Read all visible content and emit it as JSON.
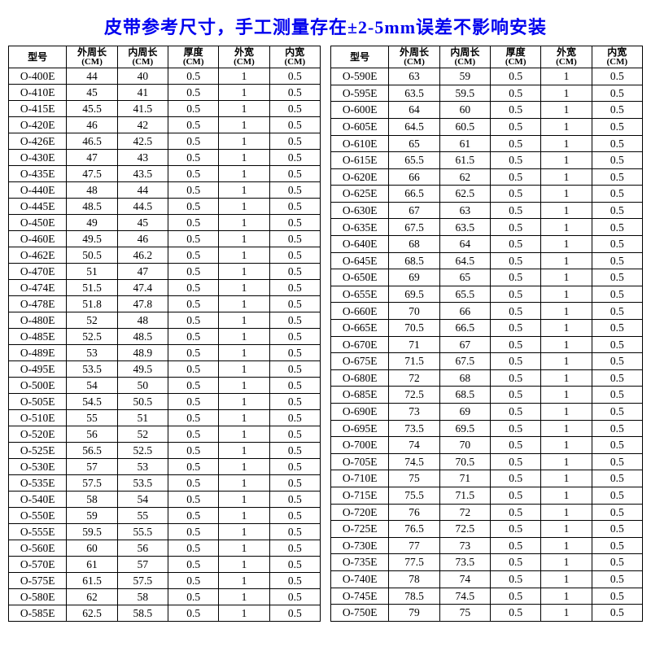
{
  "title": "皮带参考尺寸，手工测量存在±2-5mm误差不影响安装",
  "title_color": "#0000ee",
  "background_color": "#ffffff",
  "border_color": "#000000",
  "headers": [
    {
      "label": "型号",
      "unit": ""
    },
    {
      "label": "外周长",
      "unit": "(CM)"
    },
    {
      "label": "内周长",
      "unit": "(CM)"
    },
    {
      "label": "厚度",
      "unit": "(CM)"
    },
    {
      "label": "外宽",
      "unit": "(CM)"
    },
    {
      "label": "内宽",
      "unit": "(CM)"
    }
  ],
  "left_rows": [
    [
      "O-400E",
      "44",
      "40",
      "0.5",
      "1",
      "0.5"
    ],
    [
      "O-410E",
      "45",
      "41",
      "0.5",
      "1",
      "0.5"
    ],
    [
      "O-415E",
      "45.5",
      "41.5",
      "0.5",
      "1",
      "0.5"
    ],
    [
      "O-420E",
      "46",
      "42",
      "0.5",
      "1",
      "0.5"
    ],
    [
      "O-426E",
      "46.5",
      "42.5",
      "0.5",
      "1",
      "0.5"
    ],
    [
      "O-430E",
      "47",
      "43",
      "0.5",
      "1",
      "0.5"
    ],
    [
      "O-435E",
      "47.5",
      "43.5",
      "0.5",
      "1",
      "0.5"
    ],
    [
      "O-440E",
      "48",
      "44",
      "0.5",
      "1",
      "0.5"
    ],
    [
      "O-445E",
      "48.5",
      "44.5",
      "0.5",
      "1",
      "0.5"
    ],
    [
      "O-450E",
      "49",
      "45",
      "0.5",
      "1",
      "0.5"
    ],
    [
      "O-460E",
      "49.5",
      "46",
      "0.5",
      "1",
      "0.5"
    ],
    [
      "O-462E",
      "50.5",
      "46.2",
      "0.5",
      "1",
      "0.5"
    ],
    [
      "O-470E",
      "51",
      "47",
      "0.5",
      "1",
      "0.5"
    ],
    [
      "O-474E",
      "51.5",
      "47.4",
      "0.5",
      "1",
      "0.5"
    ],
    [
      "O-478E",
      "51.8",
      "47.8",
      "0.5",
      "1",
      "0.5"
    ],
    [
      "O-480E",
      "52",
      "48",
      "0.5",
      "1",
      "0.5"
    ],
    [
      "O-485E",
      "52.5",
      "48.5",
      "0.5",
      "1",
      "0.5"
    ],
    [
      "O-489E",
      "53",
      "48.9",
      "0.5",
      "1",
      "0.5"
    ],
    [
      "O-495E",
      "53.5",
      "49.5",
      "0.5",
      "1",
      "0.5"
    ],
    [
      "O-500E",
      "54",
      "50",
      "0.5",
      "1",
      "0.5"
    ],
    [
      "O-505E",
      "54.5",
      "50.5",
      "0.5",
      "1",
      "0.5"
    ],
    [
      "O-510E",
      "55",
      "51",
      "0.5",
      "1",
      "0.5"
    ],
    [
      "O-520E",
      "56",
      "52",
      "0.5",
      "1",
      "0.5"
    ],
    [
      "O-525E",
      "56.5",
      "52.5",
      "0.5",
      "1",
      "0.5"
    ],
    [
      "O-530E",
      "57",
      "53",
      "0.5",
      "1",
      "0.5"
    ],
    [
      "O-535E",
      "57.5",
      "53.5",
      "0.5",
      "1",
      "0.5"
    ],
    [
      "O-540E",
      "58",
      "54",
      "0.5",
      "1",
      "0.5"
    ],
    [
      "O-550E",
      "59",
      "55",
      "0.5",
      "1",
      "0.5"
    ],
    [
      "O-555E",
      "59.5",
      "55.5",
      "0.5",
      "1",
      "0.5"
    ],
    [
      "O-560E",
      "60",
      "56",
      "0.5",
      "1",
      "0.5"
    ],
    [
      "O-570E",
      "61",
      "57",
      "0.5",
      "1",
      "0.5"
    ],
    [
      "O-575E",
      "61.5",
      "57.5",
      "0.5",
      "1",
      "0.5"
    ],
    [
      "O-580E",
      "62",
      "58",
      "0.5",
      "1",
      "0.5"
    ],
    [
      "O-585E",
      "62.5",
      "58.5",
      "0.5",
      "1",
      "0.5"
    ]
  ],
  "right_rows": [
    [
      "O-590E",
      "63",
      "59",
      "0.5",
      "1",
      "0.5"
    ],
    [
      "O-595E",
      "63.5",
      "59.5",
      "0.5",
      "1",
      "0.5"
    ],
    [
      "O-600E",
      "64",
      "60",
      "0.5",
      "1",
      "0.5"
    ],
    [
      "O-605E",
      "64.5",
      "60.5",
      "0.5",
      "1",
      "0.5"
    ],
    [
      "O-610E",
      "65",
      "61",
      "0.5",
      "1",
      "0.5"
    ],
    [
      "O-615E",
      "65.5",
      "61.5",
      "0.5",
      "1",
      "0.5"
    ],
    [
      "O-620E",
      "66",
      "62",
      "0.5",
      "1",
      "0.5"
    ],
    [
      "O-625E",
      "66.5",
      "62.5",
      "0.5",
      "1",
      "0.5"
    ],
    [
      "O-630E",
      "67",
      "63",
      "0.5",
      "1",
      "0.5"
    ],
    [
      "O-635E",
      "67.5",
      "63.5",
      "0.5",
      "1",
      "0.5"
    ],
    [
      "O-640E",
      "68",
      "64",
      "0.5",
      "1",
      "0.5"
    ],
    [
      "O-645E",
      "68.5",
      "64.5",
      "0.5",
      "1",
      "0.5"
    ],
    [
      "O-650E",
      "69",
      "65",
      "0.5",
      "1",
      "0.5"
    ],
    [
      "O-655E",
      "69.5",
      "65.5",
      "0.5",
      "1",
      "0.5"
    ],
    [
      "O-660E",
      "70",
      "66",
      "0.5",
      "1",
      "0.5"
    ],
    [
      "O-665E",
      "70.5",
      "66.5",
      "0.5",
      "1",
      "0.5"
    ],
    [
      "O-670E",
      "71",
      "67",
      "0.5",
      "1",
      "0.5"
    ],
    [
      "O-675E",
      "71.5",
      "67.5",
      "0.5",
      "1",
      "0.5"
    ],
    [
      "O-680E",
      "72",
      "68",
      "0.5",
      "1",
      "0.5"
    ],
    [
      "O-685E",
      "72.5",
      "68.5",
      "0.5",
      "1",
      "0.5"
    ],
    [
      "O-690E",
      "73",
      "69",
      "0.5",
      "1",
      "0.5"
    ],
    [
      "O-695E",
      "73.5",
      "69.5",
      "0.5",
      "1",
      "0.5"
    ],
    [
      "O-700E",
      "74",
      "70",
      "0.5",
      "1",
      "0.5"
    ],
    [
      "O-705E",
      "74.5",
      "70.5",
      "0.5",
      "1",
      "0.5"
    ],
    [
      "O-710E",
      "75",
      "71",
      "0.5",
      "1",
      "0.5"
    ],
    [
      "O-715E",
      "75.5",
      "71.5",
      "0.5",
      "1",
      "0.5"
    ],
    [
      "O-720E",
      "76",
      "72",
      "0.5",
      "1",
      "0.5"
    ],
    [
      "O-725E",
      "76.5",
      "72.5",
      "0.5",
      "1",
      "0.5"
    ],
    [
      "O-730E",
      "77",
      "73",
      "0.5",
      "1",
      "0.5"
    ],
    [
      "O-735E",
      "77.5",
      "73.5",
      "0.5",
      "1",
      "0.5"
    ],
    [
      "O-740E",
      "78",
      "74",
      "0.5",
      "1",
      "0.5"
    ],
    [
      "O-745E",
      "78.5",
      "74.5",
      "0.5",
      "1",
      "0.5"
    ],
    [
      "O-750E",
      "79",
      "75",
      "0.5",
      "1",
      "0.5"
    ]
  ]
}
